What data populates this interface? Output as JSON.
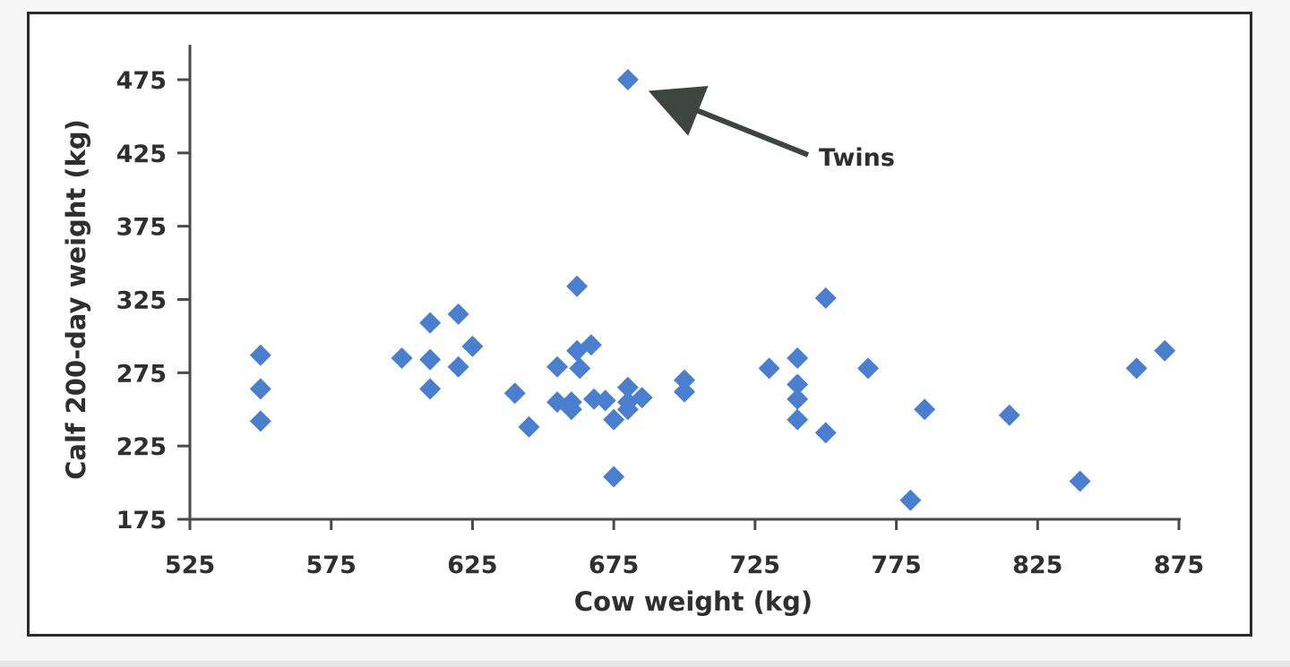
{
  "chart_data": {
    "type": "scatter",
    "xlabel": "Cow weight (kg)",
    "ylabel": "Calf 200-day weight (kg)",
    "xlim": [
      525,
      875
    ],
    "ylim": [
      175,
      500
    ],
    "xticks": [
      "525",
      "575",
      "625",
      "675",
      "725",
      "775",
      "825",
      "875"
    ],
    "yticks": [
      "175",
      "225",
      "275",
      "325",
      "375",
      "425",
      "475"
    ],
    "marker": "diamond",
    "marker_color": "#4a7fcf",
    "grid": false,
    "series": [
      {
        "points": [
          [
            550,
            287
          ],
          [
            550,
            264
          ],
          [
            550,
            242
          ],
          [
            600,
            285
          ],
          [
            610,
            309
          ],
          [
            610,
            284
          ],
          [
            610,
            264
          ],
          [
            620,
            315
          ],
          [
            620,
            279
          ],
          [
            625,
            293
          ],
          [
            640,
            261
          ],
          [
            645,
            238
          ],
          [
            655,
            279
          ],
          [
            655,
            255
          ],
          [
            660,
            250
          ],
          [
            660,
            255
          ],
          [
            662,
            334
          ],
          [
            662,
            290
          ],
          [
            663,
            278
          ],
          [
            667,
            294
          ],
          [
            668,
            257
          ],
          [
            672,
            256
          ],
          [
            675,
            243
          ],
          [
            675,
            204
          ],
          [
            680,
            265
          ],
          [
            680,
            255
          ],
          [
            680,
            250
          ],
          [
            680,
            475
          ],
          [
            685,
            258
          ],
          [
            700,
            270
          ],
          [
            700,
            262
          ],
          [
            730,
            278
          ],
          [
            740,
            285
          ],
          [
            740,
            267
          ],
          [
            740,
            257
          ],
          [
            740,
            243
          ],
          [
            750,
            326
          ],
          [
            750,
            234
          ],
          [
            765,
            278
          ],
          [
            780,
            188
          ],
          [
            785,
            250
          ],
          [
            815,
            246
          ],
          [
            840,
            201
          ],
          [
            860,
            278
          ],
          [
            870,
            290
          ]
        ]
      }
    ],
    "annotations": [
      {
        "text": "Twins",
        "target": [
          680,
          475
        ]
      }
    ]
  }
}
